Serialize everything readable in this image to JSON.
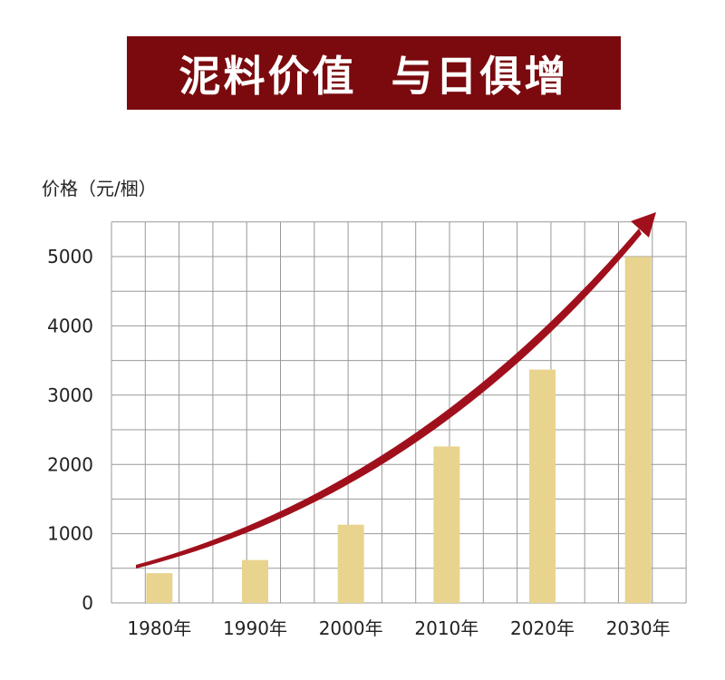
{
  "title": "泥料价值  与日俱增",
  "chart_data": {
    "type": "bar",
    "ylabel": "价格（元/梱）",
    "categories": [
      "1980年",
      "1990年",
      "2000年",
      "2010年",
      "2020年",
      "2030年"
    ],
    "values": [
      430,
      620,
      1130,
      2260,
      3370,
      5000
    ],
    "yticks": [
      0,
      1000,
      2000,
      3000,
      4000,
      5000
    ],
    "ylim": [
      0,
      5500
    ],
    "grid": true,
    "trend_arrow": true,
    "colors": {
      "bar": "#e8d48e",
      "arrow": "#a0101c",
      "grid": "#999999",
      "banner": "#7a0a0e"
    }
  }
}
